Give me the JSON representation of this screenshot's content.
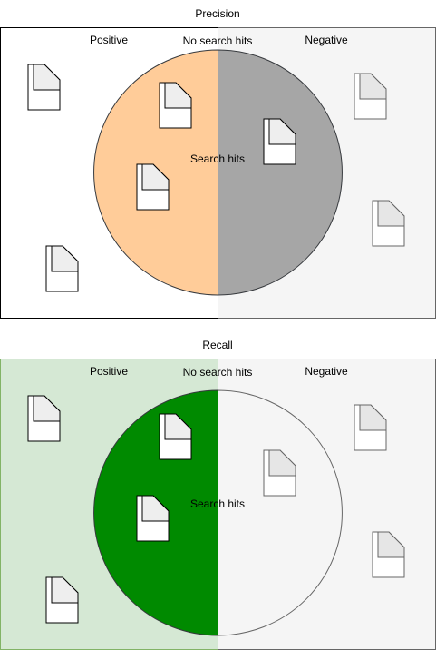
{
  "panels": [
    {
      "title": "Precision",
      "positive_label": "Positive",
      "negative_label": "Negative",
      "no_hits_label": "No search hits",
      "hits_label": "Search hits",
      "colors": {
        "positive_bg": "#ffffff",
        "negative_bg": "#f5f5f5",
        "hits_positive": "#ffcc99",
        "hits_negative": "#a6a6a6",
        "doc_fill": "#ffffff"
      }
    },
    {
      "title": "Recall",
      "positive_label": "Positive",
      "negative_label": "Negative",
      "no_hits_label": "No search hits",
      "hits_label": "Search hits",
      "colors": {
        "positive_bg": "#d5e8d4",
        "negative_bg": "#f5f5f5",
        "hits_positive": "#008a00",
        "hits_negative": "#f5f5f5",
        "doc_fill": "#ffffff"
      }
    }
  ],
  "icons": {
    "document": "document-icon"
  }
}
